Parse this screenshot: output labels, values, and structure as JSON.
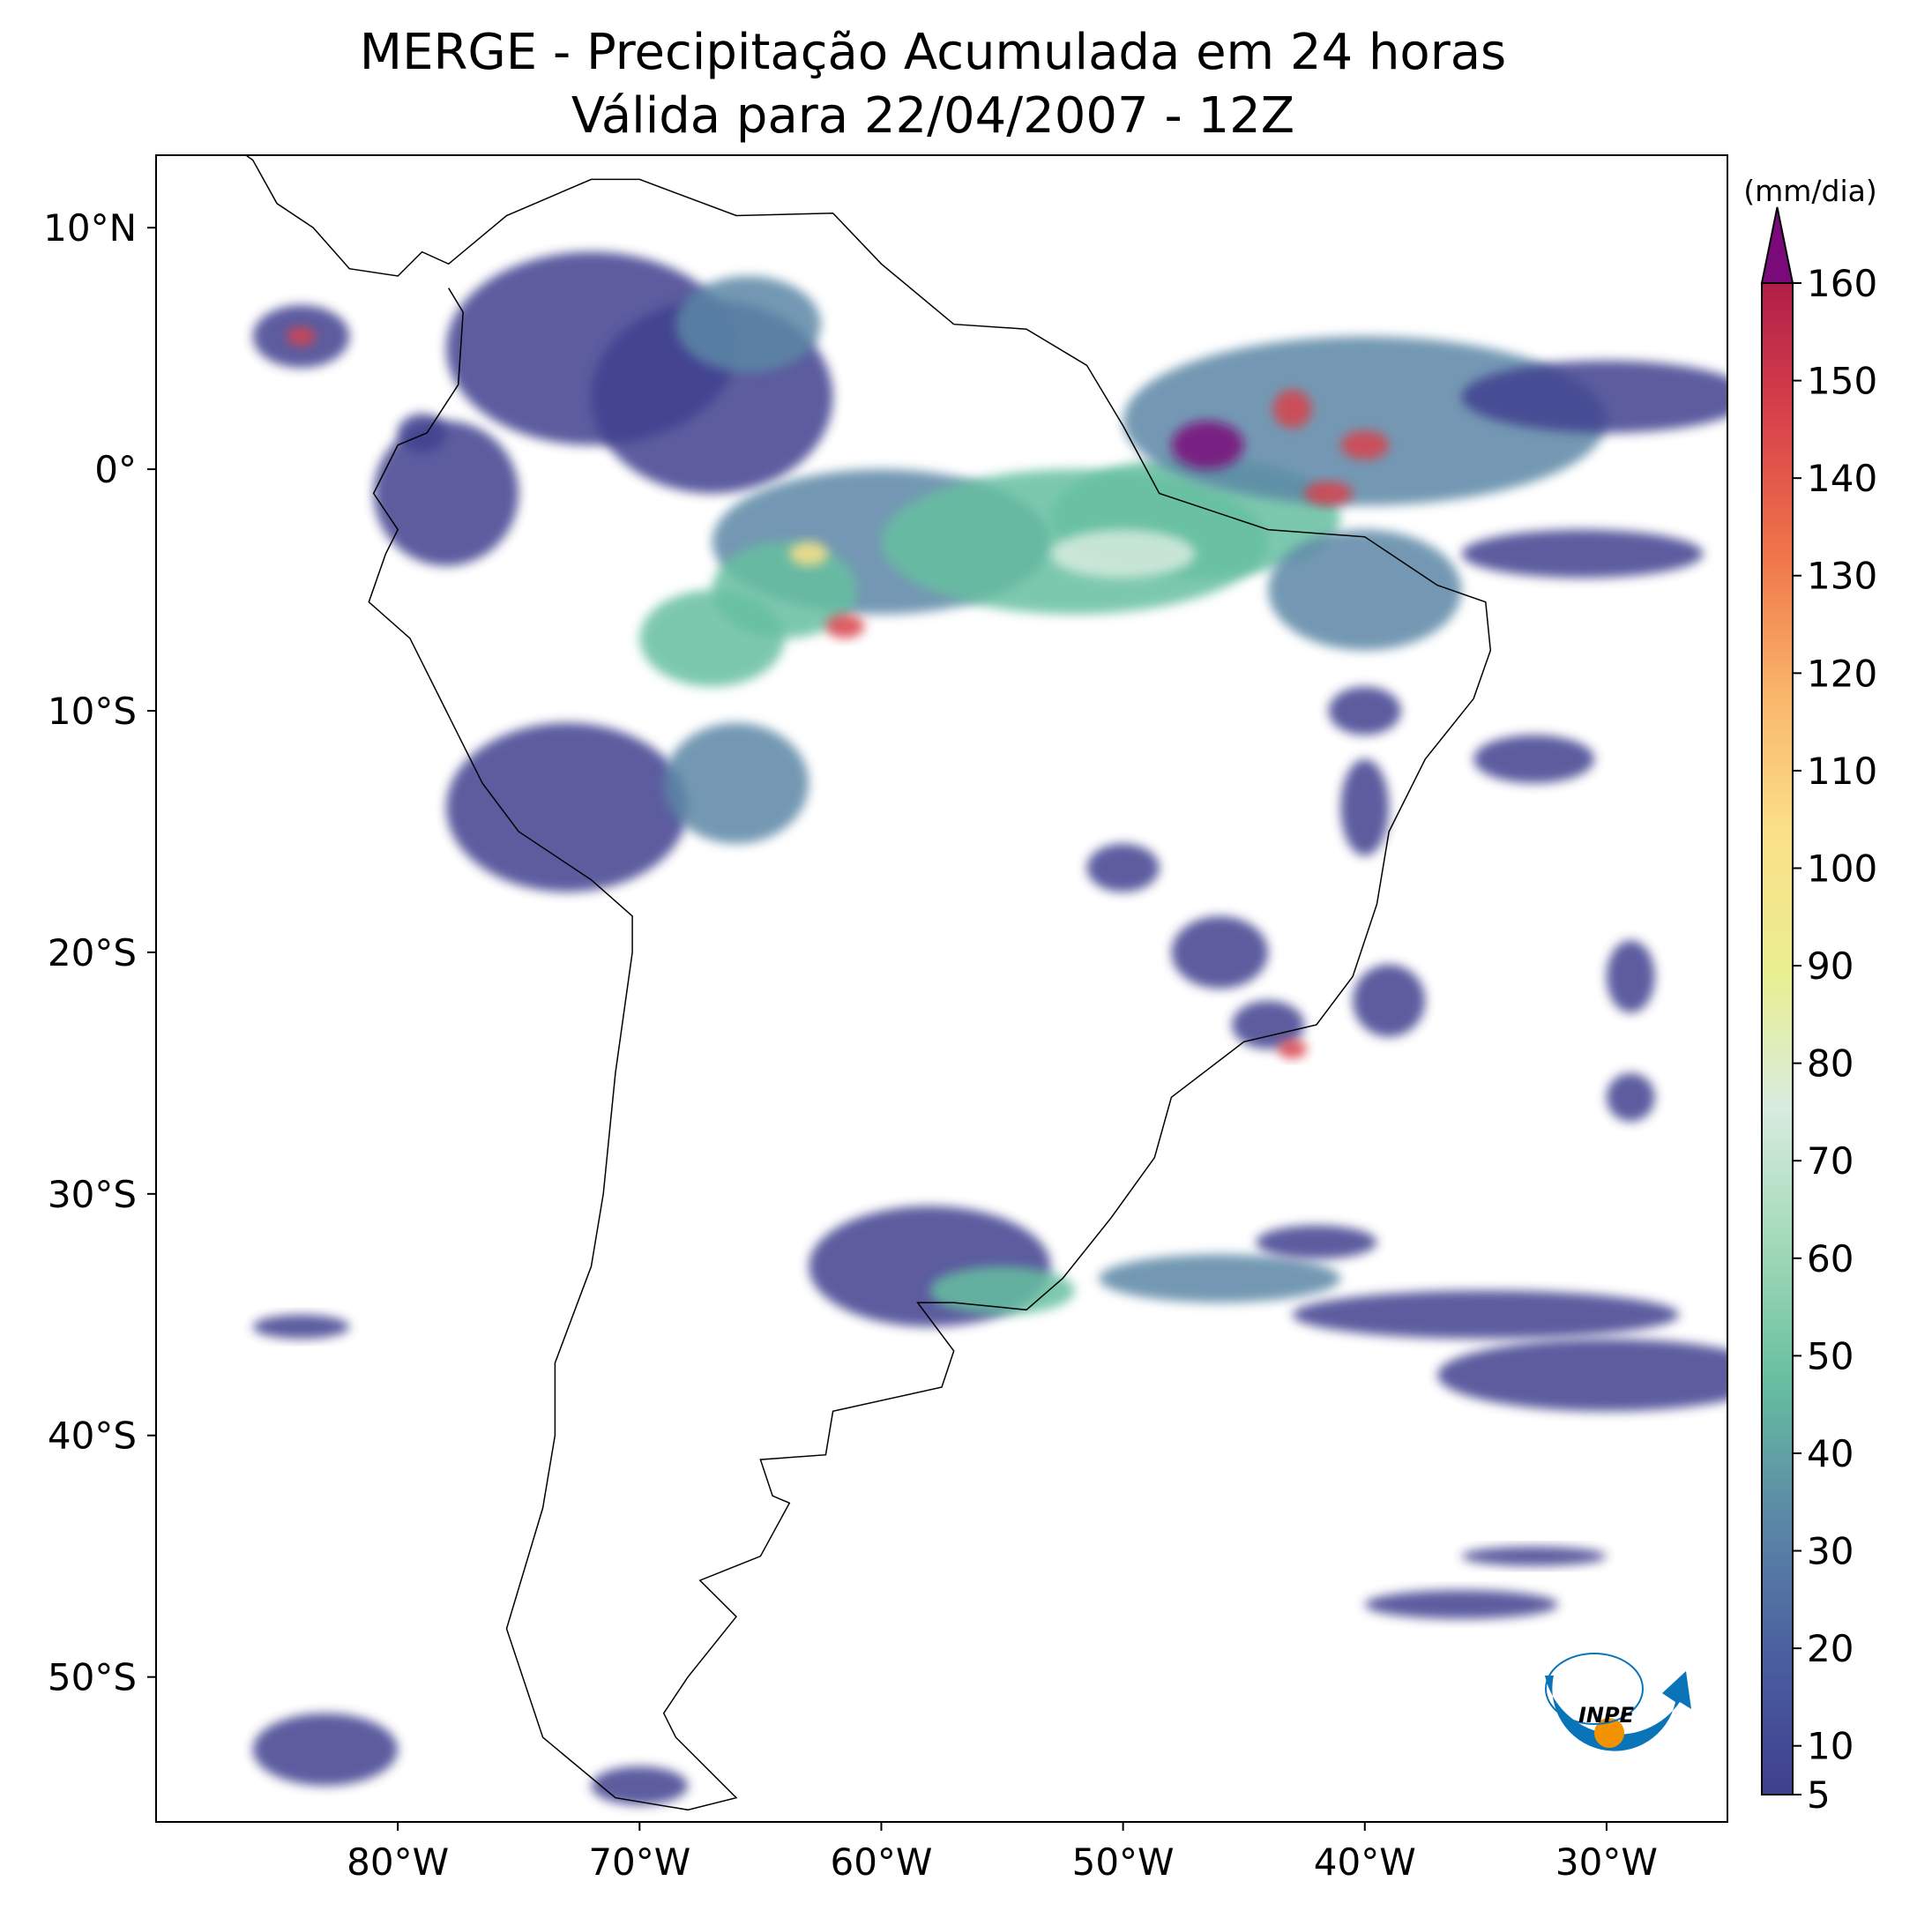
{
  "chart_data": {
    "type": "contourf",
    "title": "MERGE - Precipitação Acumulada em 24 horas",
    "subtitle": "Válida para 22/04/2007 - 12Z",
    "xlim": [
      -90,
      -25
    ],
    "ylim": [
      -56,
      13
    ],
    "xticks": [
      {
        "value": -80,
        "label": "80°W"
      },
      {
        "value": -70,
        "label": "70°W"
      },
      {
        "value": -60,
        "label": "60°W"
      },
      {
        "value": -50,
        "label": "50°W"
      },
      {
        "value": -40,
        "label": "40°W"
      },
      {
        "value": -30,
        "label": "30°W"
      }
    ],
    "yticks": [
      {
        "value": 10,
        "label": "10°N"
      },
      {
        "value": 0,
        "label": "0°"
      },
      {
        "value": -10,
        "label": "10°S"
      },
      {
        "value": -20,
        "label": "20°S"
      },
      {
        "value": -30,
        "label": "30°S"
      },
      {
        "value": -40,
        "label": "40°S"
      },
      {
        "value": -50,
        "label": "50°S"
      }
    ],
    "colorbar": {
      "label": "(mm/dia)",
      "lim": [
        5,
        160
      ],
      "ticks": [
        5,
        10,
        20,
        30,
        40,
        50,
        60,
        70,
        80,
        90,
        100,
        110,
        120,
        130,
        140,
        150,
        160
      ],
      "colormap": [
        "#3f3f8f",
        "#4a5fa0",
        "#5b87a6",
        "#66bfa0",
        "#a2d9b8",
        "#d8ecdf",
        "#e9ef8f",
        "#fbe08a",
        "#f9b66b",
        "#f0764a",
        "#d9434b",
        "#b01e48"
      ],
      "extend_color": "#7a0a7a"
    }
  },
  "logo_text": "INPE"
}
